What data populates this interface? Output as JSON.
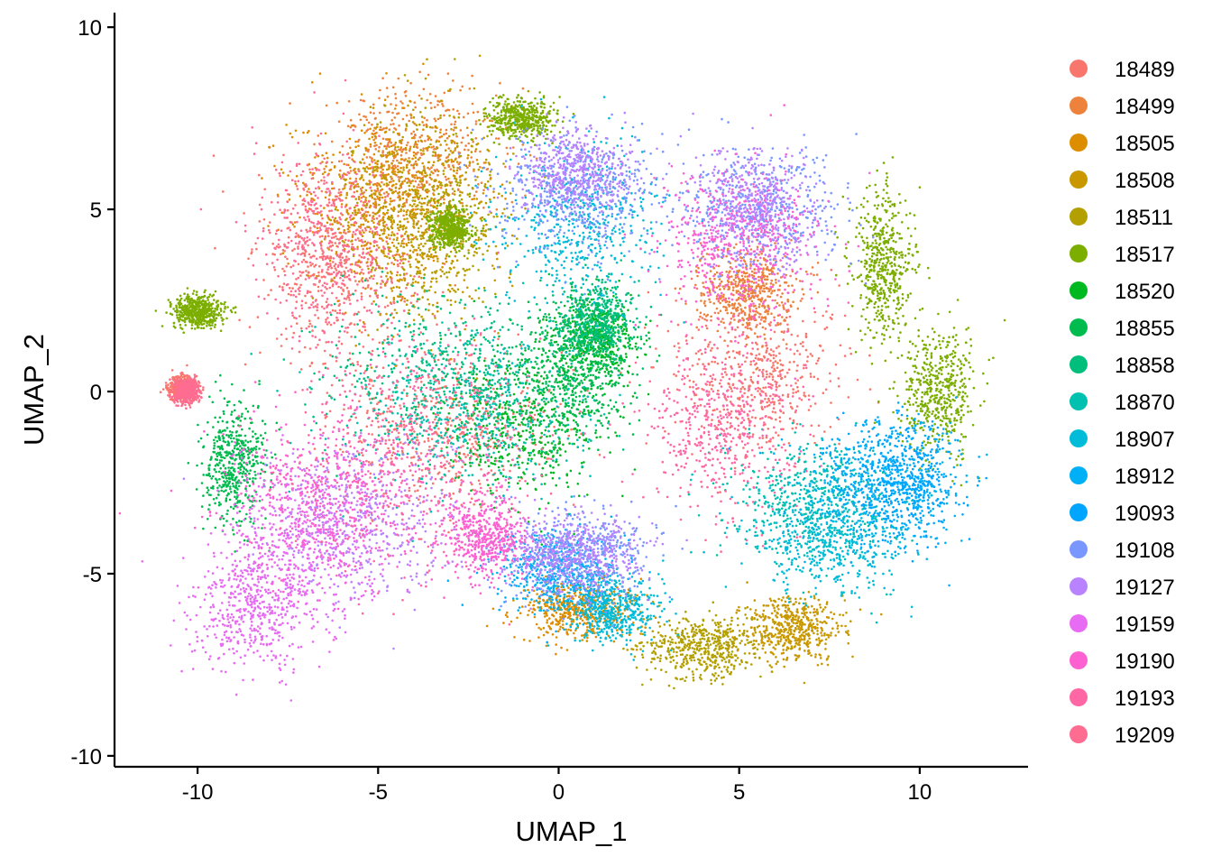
{
  "chart_data": {
    "type": "scatter",
    "title": "",
    "xlabel": "UMAP_1",
    "ylabel": "UMAP_2",
    "xlim": [
      -12.3,
      13.0
    ],
    "ylim": [
      -10.3,
      10.4
    ],
    "x_ticks": [
      -10,
      -5,
      0,
      5,
      10
    ],
    "y_ticks": [
      -10,
      -5,
      0,
      5,
      10
    ],
    "x_tick_labels": [
      "-10",
      "-5",
      "0",
      "5",
      "10"
    ],
    "y_tick_labels": [
      "-10",
      "-5",
      "0",
      "5",
      "10"
    ],
    "grid": false,
    "legend_position": "right",
    "series": [
      {
        "name": "18489",
        "color": "#F8766D",
        "clusters": [
          [
            5.5,
            0.5,
            2.2,
            2.0
          ],
          [
            -6.0,
            3.5,
            2.0,
            2.5
          ],
          [
            -3.0,
            -1.0,
            2.5,
            2.0
          ],
          [
            -10.4,
            0.1,
            0.35,
            0.3
          ]
        ]
      },
      {
        "name": "18499",
        "color": "#EC823C",
        "clusters": [
          [
            -4.0,
            6.5,
            2.0,
            1.8
          ],
          [
            5.2,
            2.8,
            1.2,
            1.0
          ]
        ]
      },
      {
        "name": "18505",
        "color": "#DC8E00",
        "clusters": [
          [
            -5.0,
            5.5,
            2.2,
            2.0
          ],
          [
            0.5,
            -6.0,
            1.5,
            0.7
          ]
        ]
      },
      {
        "name": "18508",
        "color": "#C99800",
        "clusters": [
          [
            -4.0,
            4.5,
            2.0,
            2.5
          ],
          [
            6.5,
            -6.5,
            1.2,
            0.8
          ]
        ]
      },
      {
        "name": "18511",
        "color": "#B3A000",
        "clusters": [
          [
            -3.5,
            5.0,
            2.0,
            2.5
          ],
          [
            4.0,
            -7.0,
            1.5,
            0.8
          ]
        ]
      },
      {
        "name": "18517",
        "color": "#7CAE00",
        "clusters": [
          [
            -1.0,
            7.5,
            0.8,
            0.5
          ],
          [
            9.0,
            3.5,
            0.8,
            1.8
          ],
          [
            10.5,
            0.0,
            1.0,
            1.5
          ],
          [
            -10.0,
            2.2,
            0.6,
            0.4
          ],
          [
            -3.0,
            4.5,
            0.5,
            0.5
          ]
        ]
      },
      {
        "name": "18520",
        "color": "#00B81F",
        "clusters": [
          [
            1.0,
            1.5,
            1.0,
            1.0
          ],
          [
            -1.0,
            -1.0,
            2.0,
            2.0
          ]
        ]
      },
      {
        "name": "18855",
        "color": "#00BB4E",
        "clusters": [
          [
            -9.0,
            -2.0,
            0.8,
            1.5
          ],
          [
            0.5,
            0.5,
            1.5,
            1.5
          ]
        ]
      },
      {
        "name": "18858",
        "color": "#00BF7D",
        "clusters": [
          [
            -3.0,
            0.5,
            3.0,
            2.0
          ],
          [
            1.0,
            2.0,
            1.0,
            1.0
          ]
        ]
      },
      {
        "name": "18870",
        "color": "#00C0AF",
        "clusters": [
          [
            -2.5,
            -0.5,
            3.0,
            2.0
          ],
          [
            7.0,
            -3.0,
            2.0,
            1.5
          ]
        ]
      },
      {
        "name": "18907",
        "color": "#00BCD8",
        "clusters": [
          [
            0.5,
            4.5,
            2.0,
            2.0
          ],
          [
            7.5,
            -4.0,
            2.0,
            1.5
          ],
          [
            1.5,
            -6.0,
            1.2,
            0.8
          ]
        ]
      },
      {
        "name": "18912",
        "color": "#00B0F6",
        "clusters": [
          [
            9.0,
            -2.5,
            2.0,
            1.5
          ],
          [
            0.0,
            -5.0,
            1.5,
            1.0
          ]
        ]
      },
      {
        "name": "19093",
        "color": "#00A5FF",
        "clusters": [
          [
            9.5,
            -2.5,
            1.5,
            1.5
          ]
        ]
      },
      {
        "name": "19108",
        "color": "#7997FF",
        "clusters": [
          [
            0.5,
            5.5,
            2.0,
            1.5
          ],
          [
            5.5,
            5.0,
            2.0,
            1.5
          ],
          [
            0.5,
            -4.5,
            1.8,
            1.0
          ]
        ]
      },
      {
        "name": "19127",
        "color": "#B983FF",
        "clusters": [
          [
            -5.5,
            -3.5,
            2.5,
            2.0
          ],
          [
            0.5,
            -4.5,
            1.8,
            1.0
          ],
          [
            5.5,
            5.0,
            1.5,
            1.5
          ],
          [
            0.5,
            6.0,
            1.5,
            1.0
          ]
        ]
      },
      {
        "name": "19159",
        "color": "#E76BF3",
        "clusters": [
          [
            -8.5,
            -6.0,
            1.5,
            1.5
          ],
          [
            -7.0,
            -4.0,
            2.0,
            2.0
          ]
        ]
      },
      {
        "name": "19190",
        "color": "#FD61D1",
        "clusters": [
          [
            -6.5,
            -3.0,
            2.5,
            2.0
          ],
          [
            5.0,
            4.0,
            2.0,
            2.0
          ],
          [
            -2.0,
            -4.0,
            1.0,
            1.0
          ]
        ]
      },
      {
        "name": "19193",
        "color": "#FF67A4",
        "clusters": [
          [
            -4.0,
            -1.5,
            3.0,
            3.0
          ],
          [
            4.5,
            -1.0,
            2.0,
            2.0
          ]
        ]
      },
      {
        "name": "19209",
        "color": "#FF6C91",
        "clusters": [
          [
            -6.5,
            4.0,
            1.5,
            2.5
          ],
          [
            -10.3,
            0.0,
            0.3,
            0.3
          ]
        ]
      }
    ]
  }
}
